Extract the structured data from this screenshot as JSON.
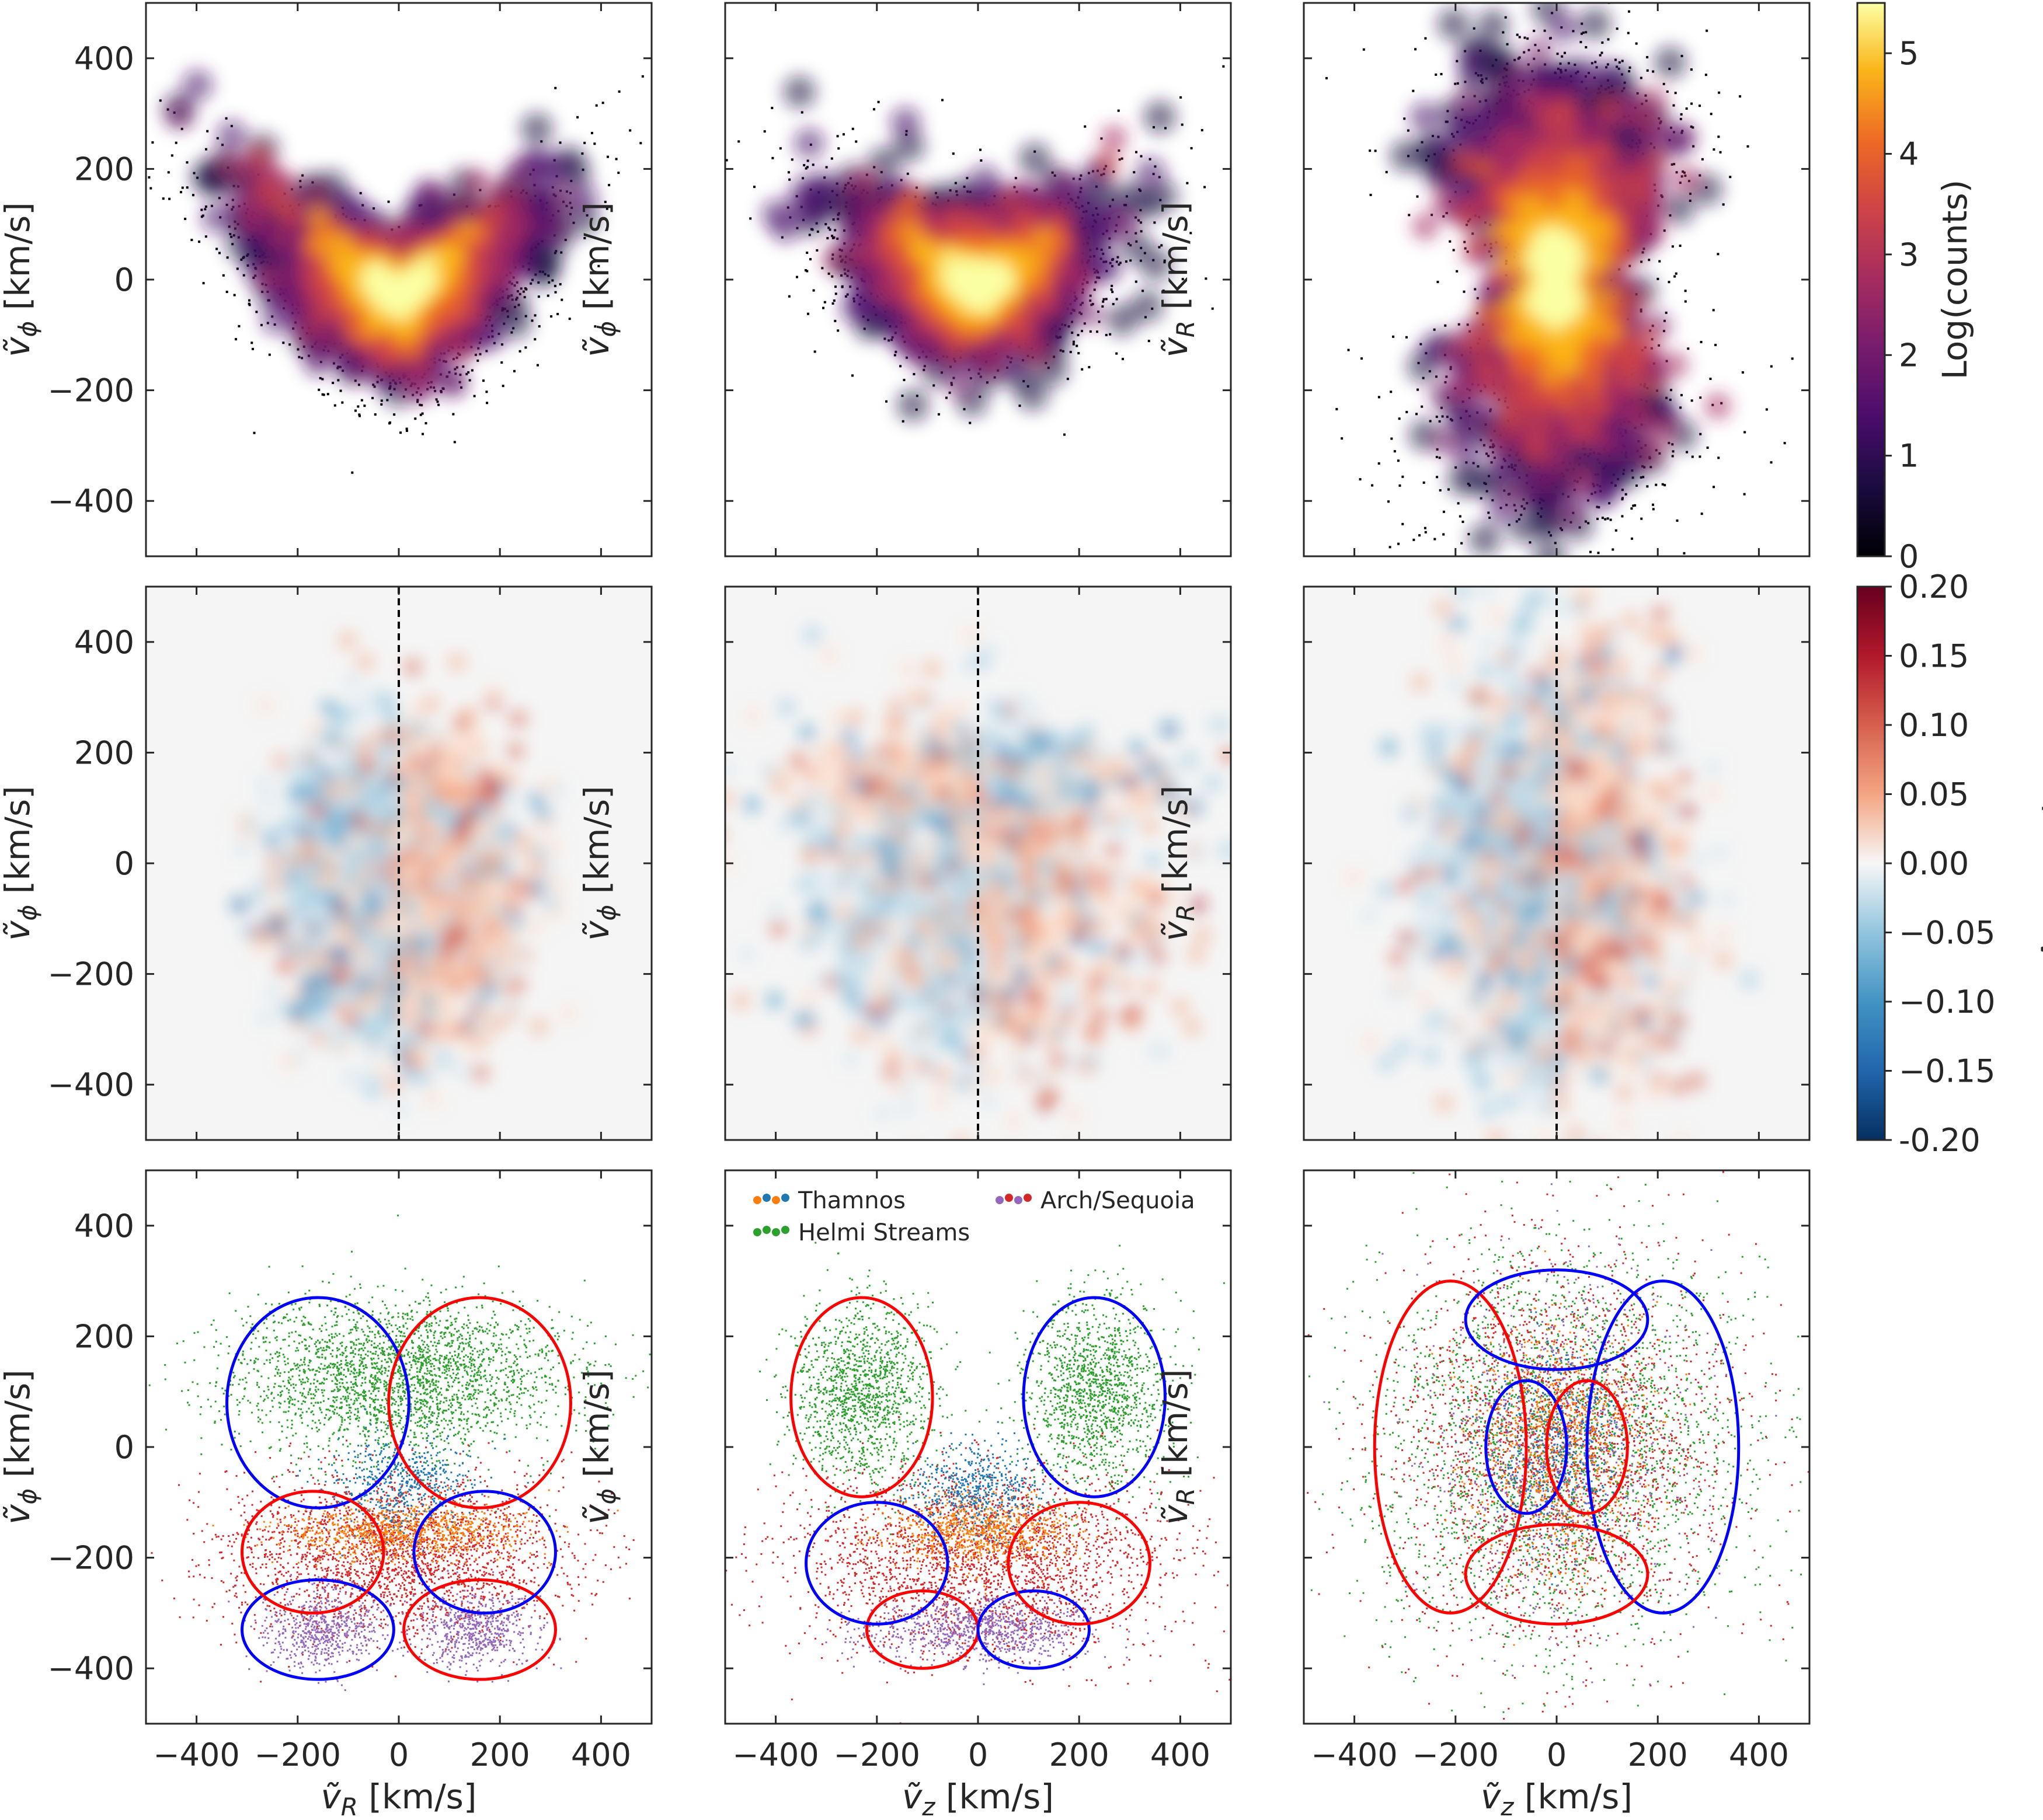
{
  "figure": {
    "description_free": true,
    "panels_count": 9
  },
  "colors": {
    "axis": "#262626",
    "thamnos": "#ff7f0e",
    "thamnos_alt": "#1f77b4",
    "helmi": "#2ca02c",
    "arch_sequoia": "#d62728",
    "arch_sequoia_alt": "#9467bd",
    "contour_positive": "#ff0000",
    "contour_negative": "#0000ff"
  },
  "chart_data": [
    {
      "id": "r0c0",
      "type": "heatmap",
      "xlabel": "",
      "ylabel": "ṽφ [km/s]",
      "ylabel_var": "ṽ",
      "ylabel_sub": "ϕ",
      "ylabel_unit": " [km/s]",
      "xlim": [
        -500,
        500
      ],
      "ylim": [
        -500,
        500
      ],
      "xticks": [
        -400,
        -200,
        0,
        200,
        400
      ],
      "yticks": [
        -400,
        -200,
        0,
        200,
        400
      ],
      "ytick_labels": [
        "−400",
        "−200",
        "0",
        "200",
        "400"
      ],
      "show_xticklabels": false,
      "show_yticklabels": true,
      "shape": "banana",
      "colormap": "inferno"
    },
    {
      "id": "r0c1",
      "type": "heatmap",
      "xlabel": "",
      "ylabel": "ṽφ [km/s]",
      "ylabel_var": "ṽ",
      "ylabel_sub": "ϕ",
      "ylabel_unit": " [km/s]",
      "xlim": [
        -500,
        500
      ],
      "ylim": [
        -500,
        500
      ],
      "xticks": [
        -400,
        -200,
        0,
        200,
        400
      ],
      "yticks": [
        -400,
        -200,
        0,
        200,
        400
      ],
      "show_xticklabels": false,
      "show_yticklabels": false,
      "shape": "cup",
      "colormap": "inferno"
    },
    {
      "id": "r0c2",
      "type": "heatmap",
      "xlabel": "",
      "ylabel": "ṽR [km/s]",
      "ylabel_var": "ṽ",
      "ylabel_sub": "R",
      "ylabel_unit": " [km/s]",
      "xlim": [
        -500,
        500
      ],
      "ylim": [
        -500,
        500
      ],
      "xticks": [
        -400,
        -200,
        0,
        200,
        400
      ],
      "yticks": [
        -400,
        -200,
        0,
        200,
        400
      ],
      "show_xticklabels": false,
      "show_yticklabels": false,
      "shape": "peanut",
      "colormap": "inferno"
    },
    {
      "id": "r1c0",
      "type": "heatmap",
      "xlabel": "",
      "ylabel": "ṽφ [km/s]",
      "ylabel_var": "ṽ",
      "ylabel_sub": "ϕ",
      "ylabel_unit": " [km/s]",
      "xlim": [
        -500,
        500
      ],
      "ylim": [
        -500,
        500
      ],
      "xticks": [
        -400,
        -200,
        0,
        200,
        400
      ],
      "yticks": [
        -400,
        -200,
        0,
        200,
        400
      ],
      "ytick_labels": [
        "−400",
        "−200",
        "0",
        "200",
        "400"
      ],
      "show_xticklabels": false,
      "show_yticklabels": true,
      "shape": "asym_ring",
      "colormap": "RdBu_r",
      "vline_x": 0
    },
    {
      "id": "r1c1",
      "type": "heatmap",
      "xlabel": "",
      "ylabel": "ṽφ [km/s]",
      "ylabel_var": "ṽ",
      "ylabel_sub": "ϕ",
      "ylabel_unit": " [km/s]",
      "xlim": [
        -500,
        500
      ],
      "ylim": [
        -500,
        500
      ],
      "xticks": [
        -400,
        -200,
        0,
        200,
        400
      ],
      "yticks": [
        -400,
        -200,
        0,
        200,
        400
      ],
      "show_xticklabels": false,
      "show_yticklabels": false,
      "shape": "asym_cup",
      "colormap": "RdBu_r",
      "vline_x": 0
    },
    {
      "id": "r1c2",
      "type": "heatmap",
      "xlabel": "",
      "ylabel": "ṽR [km/s]",
      "ylabel_var": "ṽ",
      "ylabel_sub": "R",
      "ylabel_unit": " [km/s]",
      "xlim": [
        -500,
        500
      ],
      "ylim": [
        -500,
        500
      ],
      "xticks": [
        -400,
        -200,
        0,
        200,
        400
      ],
      "yticks": [
        -400,
        -200,
        0,
        200,
        400
      ],
      "show_xticklabels": false,
      "show_yticklabels": false,
      "shape": "asym_peanut",
      "colormap": "RdBu_r",
      "vline_x": 0
    },
    {
      "id": "r2c0",
      "type": "scatter",
      "xlabel": "ṽR [km/s]",
      "xlabel_var": "ṽ",
      "xlabel_sub": "R",
      "xlabel_unit": " [km/s]",
      "ylabel": "ṽφ [km/s]",
      "ylabel_var": "ṽ",
      "ylabel_sub": "ϕ",
      "ylabel_unit": " [km/s]",
      "xlim": [
        -500,
        500
      ],
      "ylim": [
        -500,
        500
      ],
      "xticks": [
        -400,
        -200,
        0,
        200,
        400
      ],
      "yticks": [
        -400,
        -200,
        0,
        200,
        400
      ],
      "xtick_labels": [
        "−400",
        "−200",
        "0",
        "200",
        "400"
      ],
      "ytick_labels": [
        "−400",
        "−200",
        "0",
        "200",
        "400"
      ],
      "show_xticklabels": true,
      "show_yticklabels": true,
      "shape": "clusters_R"
    },
    {
      "id": "r2c1",
      "type": "scatter",
      "xlabel": "ṽz [km/s]",
      "xlabel_var": "ṽ",
      "xlabel_sub": "z",
      "xlabel_unit": " [km/s]",
      "ylabel": "ṽφ [km/s]",
      "ylabel_var": "ṽ",
      "ylabel_sub": "ϕ",
      "ylabel_unit": " [km/s]",
      "xlim": [
        -500,
        500
      ],
      "ylim": [
        -500,
        500
      ],
      "xticks": [
        -400,
        -200,
        0,
        200,
        400
      ],
      "yticks": [
        -400,
        -200,
        0,
        200,
        400
      ],
      "xtick_labels": [
        "−400",
        "−200",
        "0",
        "200",
        "400"
      ],
      "show_xticklabels": true,
      "show_yticklabels": false,
      "shape": "clusters_z",
      "legend": [
        {
          "label": "Thamnos",
          "dot_colors": [
            "#ff7f0e",
            "#1f77b4",
            "#ff7f0e",
            "#1f77b4"
          ]
        },
        {
          "label": "Arch/Sequoia",
          "dot_colors": [
            "#9467bd",
            "#d62728",
            "#9467bd",
            "#d62728"
          ]
        },
        {
          "label": "Helmi Streams",
          "dot_colors": [
            "#2ca02c",
            "#2ca02c",
            "#2ca02c",
            "#2ca02c"
          ]
        }
      ]
    },
    {
      "id": "r2c2",
      "type": "scatter",
      "xlabel": "ṽz [km/s]",
      "xlabel_var": "ṽ",
      "xlabel_sub": "z",
      "xlabel_unit": " [km/s]",
      "ylabel": "ṽR [km/s]",
      "ylabel_var": "ṽ",
      "ylabel_sub": "R",
      "ylabel_unit": " [km/s]",
      "xlim": [
        -500,
        500
      ],
      "ylim": [
        -500,
        500
      ],
      "xticks": [
        -400,
        -200,
        0,
        200,
        400
      ],
      "yticks": [
        -400,
        -200,
        0,
        200,
        400
      ],
      "xtick_labels": [
        "−400",
        "−200",
        "0",
        "200",
        "400"
      ],
      "show_xticklabels": true,
      "show_yticklabels": false,
      "shape": "clusters_peanut"
    }
  ],
  "colorbars": [
    {
      "id": "cb_counts",
      "label": "Log(counts)",
      "colormap": "inferno",
      "range": [
        0,
        5.5
      ],
      "ticks": [
        0,
        1,
        2,
        3,
        4,
        5
      ],
      "tick_labels": [
        "0",
        "1",
        "2",
        "3",
        "4",
        "5"
      ]
    },
    {
      "id": "cb_asym",
      "label": "Asymmetry",
      "colormap": "RdBu_r",
      "range": [
        -0.2,
        0.2
      ],
      "ticks": [
        -0.2,
        -0.15,
        -0.1,
        -0.05,
        0,
        0.05,
        0.1,
        0.15,
        0.2
      ],
      "tick_labels": [
        "-0.20",
        "−0.15",
        "−0.10",
        "−0.05",
        "0.00",
        "0.05",
        "0.10",
        "0.15",
        "0.20"
      ]
    }
  ]
}
